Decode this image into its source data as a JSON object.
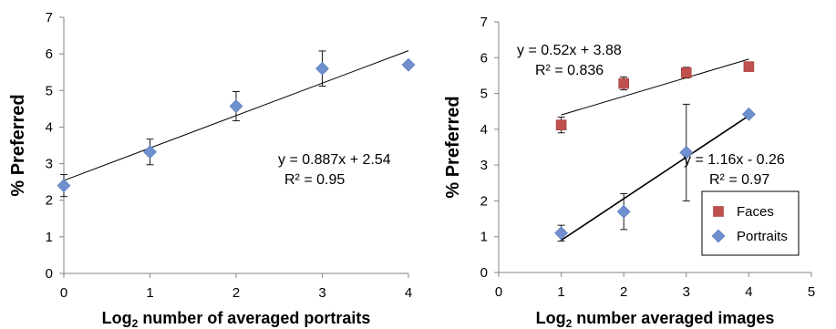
{
  "chart_data": [
    {
      "type": "scatter",
      "xlabel_main": "Log",
      "xlabel_sub": "2",
      "xlabel_rest": " number of averaged portraits",
      "ylabel": "% Preferred",
      "xlim": [
        0,
        4
      ],
      "ylim": [
        0,
        7
      ],
      "xticks": [
        "0",
        "1",
        "2",
        "3",
        "4"
      ],
      "yticks": [
        "0",
        "1",
        "2",
        "3",
        "4",
        "5",
        "6",
        "7"
      ],
      "grid": false,
      "series": [
        {
          "marker": "diamond",
          "color": "#6f8fcf",
          "points": [
            {
              "x": 0,
              "y": 2.4,
              "err_lo": 0.3,
              "err_hi": 0.3
            },
            {
              "x": 1,
              "y": 3.32,
              "err_lo": 0.35,
              "err_hi": 0.35
            },
            {
              "x": 2,
              "y": 4.57,
              "err_lo": 0.4,
              "err_hi": 0.4
            },
            {
              "x": 3,
              "y": 5.6,
              "err_lo": 0.48,
              "err_hi": 0.48
            },
            {
              "x": 4,
              "y": 5.7,
              "err_lo": 0,
              "err_hi": 0
            }
          ],
          "trendline": {
            "slope": 0.887,
            "intercept": 2.54,
            "x_from": 0,
            "x_to": 4
          },
          "equation": "y = 0.887x + 2.54",
          "r2": "R² = 0.95"
        }
      ]
    },
    {
      "type": "scatter",
      "xlabel_main": "Log",
      "xlabel_sub": "2",
      "xlabel_rest": " number averaged images",
      "ylabel": "% Preferred",
      "xlim": [
        0,
        5
      ],
      "ylim": [
        0,
        7
      ],
      "xticks": [
        "0",
        "1",
        "2",
        "3",
        "4",
        "5"
      ],
      "yticks": [
        "0",
        "1",
        "2",
        "3",
        "4",
        "5",
        "6",
        "7"
      ],
      "grid": false,
      "legend_position": "bottom-right",
      "series": [
        {
          "name": "Faces",
          "marker": "square",
          "color": "#c0504d",
          "points": [
            {
              "x": 1,
              "y": 4.12,
              "err_lo": 0.22,
              "err_hi": 0.22
            },
            {
              "x": 2,
              "y": 5.28,
              "err_lo": 0.18,
              "err_hi": 0.18
            },
            {
              "x": 3,
              "y": 5.58,
              "err_lo": 0.15,
              "err_hi": 0.15
            },
            {
              "x": 4,
              "y": 5.75,
              "err_lo": 0,
              "err_hi": 0
            }
          ],
          "trendline": {
            "slope": 0.52,
            "intercept": 3.88,
            "x_from": 1,
            "x_to": 4
          },
          "equation": "y = 0.52x + 3.88",
          "r2": "R² = 0.836"
        },
        {
          "name": "Portraits",
          "marker": "diamond",
          "color": "#6f8fcf",
          "points": [
            {
              "x": 1,
              "y": 1.1,
              "err_lo": 0.22,
              "err_hi": 0.22
            },
            {
              "x": 2,
              "y": 1.7,
              "err_lo": 0.5,
              "err_hi": 0.5
            },
            {
              "x": 3,
              "y": 3.35,
              "err_lo": 1.35,
              "err_hi": 1.35
            },
            {
              "x": 4,
              "y": 4.42,
              "err_lo": 0,
              "err_hi": 0
            }
          ],
          "trendline": {
            "slope": 1.16,
            "intercept": -0.26,
            "x_from": 1,
            "x_to": 4
          },
          "equation": "y = 1.16x - 0.26",
          "r2": "R² = 0.97"
        }
      ]
    }
  ]
}
